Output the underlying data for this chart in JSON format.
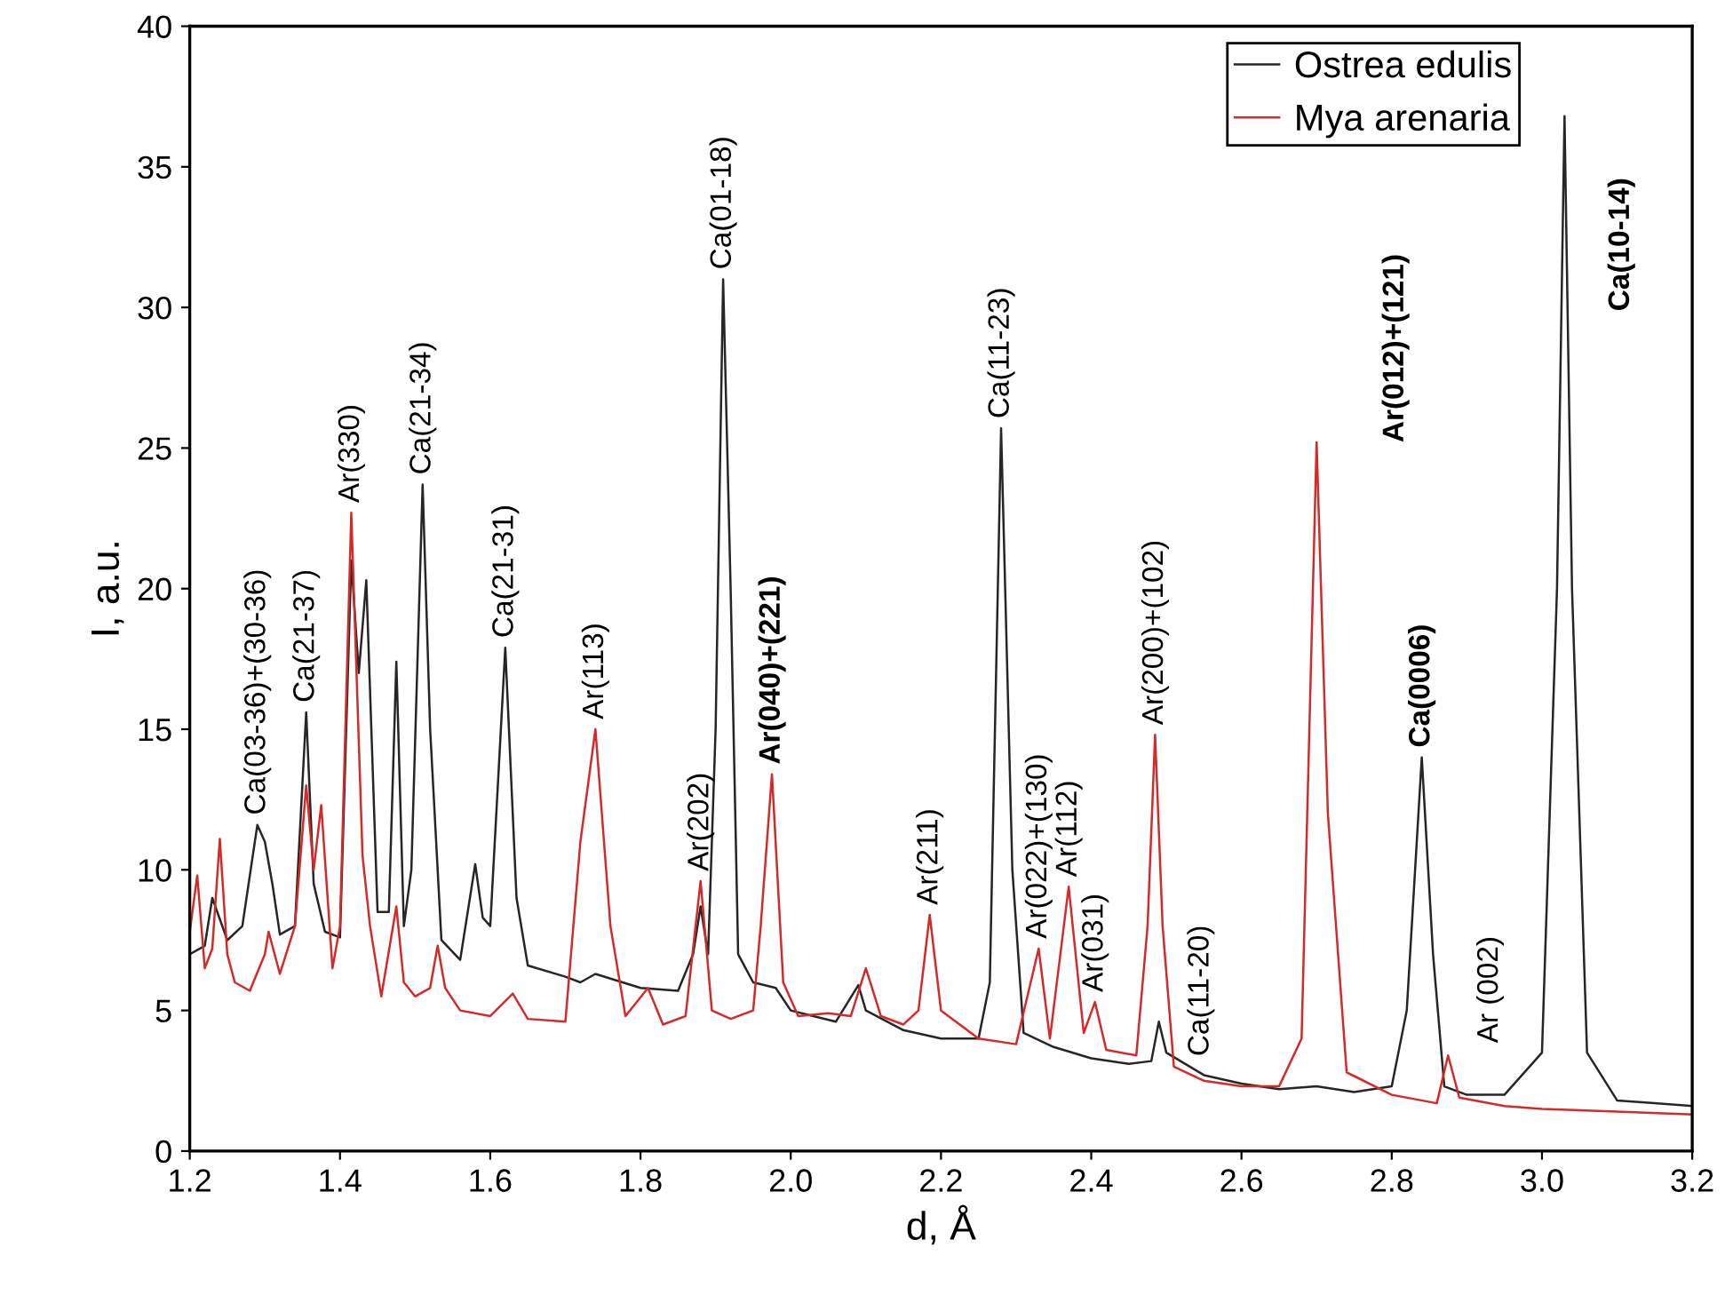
{
  "chart_data": {
    "type": "line",
    "xlabel": "d, Å",
    "ylabel": "I, a.u.",
    "xlim": [
      1.2,
      3.2
    ],
    "ylim": [
      0,
      40
    ],
    "xticks": [
      1.2,
      1.4,
      1.6,
      1.8,
      {
        "value": 2,
        "label": "2.0"
      },
      2.2,
      2.4,
      2.6,
      2.8,
      {
        "value": 3,
        "label": "3.0"
      },
      3.2
    ],
    "yticks": [
      0,
      5,
      10,
      15,
      20,
      25,
      30,
      35,
      40
    ],
    "grid": false,
    "legend": "top right",
    "marker": "none",
    "line_style": "solid",
    "series": [
      {
        "name": "Ostrea edulis",
        "color": "#262626",
        "x": [
          1.2,
          1.22,
          1.23,
          1.25,
          1.27,
          1.29,
          1.3,
          1.31,
          1.32,
          1.34,
          1.355,
          1.365,
          1.38,
          1.4,
          1.415,
          1.425,
          1.435,
          1.45,
          1.465,
          1.475,
          1.485,
          1.495,
          1.51,
          1.52,
          1.535,
          1.56,
          1.58,
          1.59,
          1.6,
          1.62,
          1.635,
          1.65,
          1.7,
          1.72,
          1.74,
          1.8,
          1.85,
          1.87,
          1.88,
          1.89,
          1.9,
          1.91,
          1.92,
          1.93,
          1.95,
          1.98,
          2.0,
          2.03,
          2.06,
          2.09,
          2.1,
          2.15,
          2.2,
          2.25,
          2.265,
          2.28,
          2.295,
          2.31,
          2.35,
          2.4,
          2.45,
          2.48,
          2.49,
          2.5,
          2.55,
          2.6,
          2.65,
          2.7,
          2.75,
          2.8,
          2.82,
          2.84,
          2.855,
          2.87,
          2.9,
          2.95,
          3.0,
          3.02,
          3.03,
          3.04,
          3.06,
          3.1,
          3.15,
          3.2
        ],
        "values": [
          7.0,
          7.3,
          9.0,
          7.5,
          8.0,
          11.6,
          11.0,
          9.5,
          7.7,
          8.0,
          15.6,
          9.5,
          7.8,
          7.6,
          21.0,
          17.0,
          20.3,
          8.5,
          8.5,
          17.4,
          8.0,
          10.0,
          23.7,
          15.0,
          7.5,
          6.8,
          10.2,
          8.3,
          8.0,
          17.9,
          9.0,
          6.6,
          6.2,
          6.0,
          6.3,
          5.8,
          5.7,
          7.0,
          8.7,
          7.0,
          15.0,
          31.0,
          20.0,
          7.0,
          6.0,
          5.8,
          5.0,
          4.8,
          4.6,
          5.9,
          5.0,
          4.3,
          4.0,
          4.0,
          6.0,
          25.7,
          10.0,
          4.2,
          3.7,
          3.3,
          3.1,
          3.2,
          4.6,
          3.5,
          2.7,
          2.4,
          2.2,
          2.3,
          2.1,
          2.3,
          5.0,
          14.0,
          7.0,
          2.3,
          2.0,
          2.0,
          3.5,
          20.0,
          36.8,
          20.0,
          3.5,
          1.8,
          1.7,
          1.6
        ]
      },
      {
        "name": "Mya arenaria",
        "color": "#d42a2a",
        "x": [
          1.2,
          1.21,
          1.22,
          1.23,
          1.24,
          1.25,
          1.26,
          1.28,
          1.3,
          1.305,
          1.32,
          1.34,
          1.355,
          1.365,
          1.375,
          1.39,
          1.4,
          1.415,
          1.43,
          1.44,
          1.455,
          1.475,
          1.485,
          1.5,
          1.52,
          1.53,
          1.54,
          1.56,
          1.6,
          1.63,
          1.65,
          1.7,
          1.72,
          1.74,
          1.76,
          1.78,
          1.81,
          1.83,
          1.86,
          1.88,
          1.895,
          1.92,
          1.95,
          1.96,
          1.975,
          1.99,
          2.01,
          2.05,
          2.08,
          2.1,
          2.12,
          2.15,
          2.17,
          2.185,
          2.2,
          2.25,
          2.3,
          2.33,
          2.345,
          2.37,
          2.39,
          2.405,
          2.42,
          2.46,
          2.475,
          2.485,
          2.495,
          2.51,
          2.55,
          2.6,
          2.65,
          2.68,
          2.7,
          2.715,
          2.74,
          2.8,
          2.86,
          2.875,
          2.89,
          2.95,
          3.0,
          3.1,
          3.2
        ],
        "values": [
          7.8,
          9.8,
          6.5,
          7.2,
          11.1,
          7.0,
          6.0,
          5.7,
          7.0,
          7.8,
          6.3,
          8.0,
          13.0,
          10.0,
          12.3,
          6.5,
          8.0,
          22.7,
          10.5,
          8.0,
          5.5,
          8.7,
          6.0,
          5.5,
          5.8,
          7.3,
          5.8,
          5.0,
          4.8,
          5.6,
          4.7,
          4.6,
          11.0,
          15.0,
          8.0,
          4.8,
          5.8,
          4.5,
          4.8,
          9.6,
          5.0,
          4.7,
          5.0,
          8.0,
          13.4,
          6.0,
          4.8,
          4.9,
          4.8,
          6.5,
          4.8,
          4.5,
          5.0,
          8.4,
          5.0,
          4.0,
          3.8,
          7.2,
          4.0,
          9.4,
          4.2,
          5.3,
          3.6,
          3.4,
          8.0,
          14.8,
          8.0,
          3.0,
          2.5,
          2.3,
          2.3,
          4.0,
          25.2,
          12.0,
          2.8,
          2.0,
          1.7,
          3.4,
          1.9,
          1.6,
          1.5,
          1.4,
          1.3
        ]
      }
    ],
    "annotations": [
      {
        "text": "Ca(03-36)+(30-36)",
        "x": 1.29,
        "y": 11.6
      },
      {
        "text": "Ca(21-37)",
        "x": 1.355,
        "y": 15.6
      },
      {
        "text": "Ar(330)",
        "x": 1.415,
        "y": 22.7
      },
      {
        "text": "Ca(21-34)",
        "x": 1.51,
        "y": 23.7
      },
      {
        "text": "Ca(21-31)",
        "x": 1.62,
        "y": 17.9
      },
      {
        "text": "Ar(113)",
        "x": 1.74,
        "y": 15.0
      },
      {
        "text": "Ar(202)",
        "x": 1.88,
        "y": 9.6
      },
      {
        "text": "Ca(01-18)",
        "x": 1.91,
        "y": 31.0
      },
      {
        "text": "Ar(040)+(221)",
        "x": 1.975,
        "y": 13.4
      },
      {
        "text": "Ar(211)",
        "x": 2.185,
        "y": 8.4
      },
      {
        "text": "Ca(11-23)",
        "x": 2.28,
        "y": 25.7
      },
      {
        "text": "Ar(022)+(130)",
        "x": 2.33,
        "y": 7.2
      },
      {
        "text": "Ar(112)",
        "x": 2.37,
        "y": 9.4
      },
      {
        "text": "Ar(031)",
        "x": 2.405,
        "y": 5.3
      },
      {
        "text": "Ar(200)+(102)",
        "x": 2.485,
        "y": 14.8
      },
      {
        "text": "Ca(11-20)",
        "x": 2.49,
        "y": 4.6
      },
      {
        "text": "Ar(012)+(121)",
        "x": 2.7,
        "y": 25.2
      },
      {
        "text": "Ca(0006)",
        "x": 2.84,
        "y": 14.0
      },
      {
        "text": "Ar (002)",
        "x": 2.875,
        "y": 3.4
      },
      {
        "text": "Ca(10-14)",
        "x": 3.03,
        "y": 36.8
      }
    ]
  }
}
